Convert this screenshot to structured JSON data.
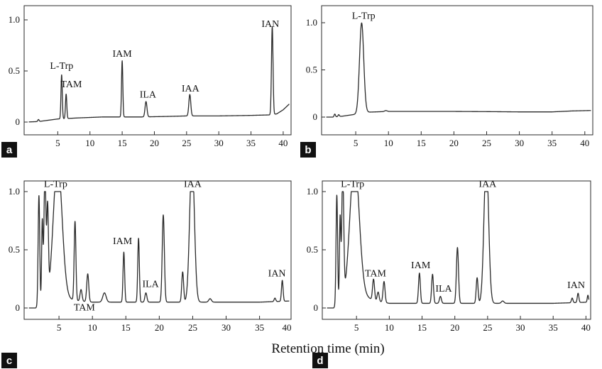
{
  "figure": {
    "x_axis_title": "Retention time (min)"
  },
  "colors": {
    "trace": "#2a2a2a",
    "badge_bg": "#111111",
    "badge_text": "#ffffff"
  },
  "chart_data": [
    {
      "panel": "a",
      "type": "line",
      "x_range": [
        0,
        41
      ],
      "y_range": [
        0,
        1.1
      ],
      "x_ticks": [
        5,
        10,
        15,
        20,
        25,
        30,
        35,
        40
      ],
      "y_ticks": [
        0,
        0.5,
        1.0
      ],
      "y_tick_labels": [
        "0",
        "0.5",
        "1.0"
      ],
      "baseline": {
        "x": [
          0,
          2,
          5,
          8,
          12,
          15,
          18,
          22,
          25,
          30,
          35,
          38,
          39,
          40,
          41
        ],
        "y": [
          0,
          0.005,
          0.03,
          0.04,
          0.05,
          0.05,
          0.05,
          0.055,
          0.06,
          0.06,
          0.065,
          0.07,
          0.08,
          0.12,
          0.18
        ]
      },
      "peaks": [
        {
          "x": 2.0,
          "h": 0.02,
          "w": 0.1,
          "label": ""
        },
        {
          "x": 5.6,
          "h": 0.43,
          "w": 0.1,
          "label": "L-Trp"
        },
        {
          "x": 6.3,
          "h": 0.24,
          "w": 0.1,
          "label": "TAM"
        },
        {
          "x": 15.0,
          "h": 0.55,
          "w": 0.1,
          "label": "IAM"
        },
        {
          "x": 18.7,
          "h": 0.15,
          "w": 0.15,
          "label": "ILA"
        },
        {
          "x": 25.5,
          "h": 0.21,
          "w": 0.15,
          "label": "IAA"
        },
        {
          "x": 38.3,
          "h": 0.86,
          "w": 0.12,
          "label": "IAN"
        }
      ],
      "labels": [
        {
          "text": "L-Trp",
          "x": 5.6,
          "y": 0.52
        },
        {
          "text": "TAM",
          "x": 7.1,
          "y": 0.34
        },
        {
          "text": "IAM",
          "x": 15.0,
          "y": 0.64
        },
        {
          "text": "ILA",
          "x": 19.0,
          "y": 0.24
        },
        {
          "text": "IAA",
          "x": 25.6,
          "y": 0.3
        },
        {
          "text": "IAN",
          "x": 38.0,
          "y": 0.93
        }
      ]
    },
    {
      "panel": "b",
      "type": "line",
      "x_range": [
        0,
        41
      ],
      "y_range": [
        -0.1,
        1.1
      ],
      "x_ticks": [
        5,
        10,
        15,
        20,
        25,
        30,
        35,
        40
      ],
      "y_ticks": [
        0,
        0.5,
        1.0
      ],
      "y_tick_labels": [
        "0",
        "0.5",
        "1.0"
      ],
      "baseline": {
        "x": [
          0,
          1.5,
          3,
          5,
          6,
          8,
          10,
          15,
          20,
          25,
          30,
          35,
          38,
          41
        ],
        "y": [
          0,
          0.0,
          0.01,
          0.03,
          0.05,
          0.055,
          0.06,
          0.06,
          0.06,
          0.058,
          0.055,
          0.055,
          0.065,
          0.07
        ]
      },
      "peaks": [
        {
          "x": 1.8,
          "h": 0.03,
          "w": 0.1,
          "label": ""
        },
        {
          "x": 2.4,
          "h": 0.02,
          "w": 0.1,
          "label": ""
        },
        {
          "x": 5.9,
          "h": 0.95,
          "w": 0.32,
          "label": "L-Trp"
        },
        {
          "x": 9.6,
          "h": 0.01,
          "w": 0.2,
          "label": ""
        }
      ],
      "clip_top": 1.0,
      "labels": [
        {
          "text": "L-Trp",
          "x": 6.2,
          "y": 1.04
        }
      ]
    },
    {
      "panel": "c",
      "type": "line",
      "x_range": [
        0,
        39.5
      ],
      "y_range": [
        -0.1,
        1.1
      ],
      "x_ticks": [
        5,
        10,
        15,
        20,
        25,
        30,
        35
      ],
      "x_tick_labels_shown": [
        "5",
        "10",
        "15",
        "20",
        "25",
        "30",
        "35",
        "40"
      ],
      "y_ticks": [
        0,
        0.5,
        1.0
      ],
      "y_tick_labels": [
        "0",
        "0.5",
        "1.0"
      ],
      "baseline": {
        "x": [
          0,
          1.5,
          3,
          6,
          8,
          10,
          12,
          15,
          20,
          25,
          30,
          35,
          39.5
        ],
        "y": [
          0,
          0.0,
          0.05,
          0.08,
          0.06,
          0.05,
          0.05,
          0.05,
          0.05,
          0.05,
          0.05,
          0.05,
          0.06
        ]
      },
      "peaks": [
        {
          "x": 2.0,
          "h": 0.95,
          "w": 0.12,
          "label": ""
        },
        {
          "x": 2.5,
          "h": 0.7,
          "w": 0.1,
          "label": ""
        },
        {
          "x": 2.9,
          "h": 1.1,
          "w": 0.15,
          "label": ""
        },
        {
          "x": 3.3,
          "h": 0.75,
          "w": 0.12,
          "label": ""
        },
        {
          "x": 4.8,
          "h": 1.2,
          "w": 0.65,
          "label": "L-Trp"
        },
        {
          "x": 7.4,
          "h": 0.68,
          "w": 0.13,
          "label": ""
        },
        {
          "x": 8.3,
          "h": 0.1,
          "w": 0.15,
          "label": "TAM"
        },
        {
          "x": 9.3,
          "h": 0.24,
          "w": 0.15,
          "label": ""
        },
        {
          "x": 11.8,
          "h": 0.08,
          "w": 0.25,
          "label": ""
        },
        {
          "x": 14.7,
          "h": 0.43,
          "w": 0.12,
          "label": "IAM"
        },
        {
          "x": 16.9,
          "h": 0.55,
          "w": 0.12,
          "label": ""
        },
        {
          "x": 18.0,
          "h": 0.08,
          "w": 0.15,
          "label": "ILA"
        },
        {
          "x": 20.6,
          "h": 0.75,
          "w": 0.16,
          "label": ""
        },
        {
          "x": 23.5,
          "h": 0.26,
          "w": 0.14,
          "label": ""
        },
        {
          "x": 24.9,
          "h": 1.25,
          "w": 0.35,
          "label": "IAA"
        },
        {
          "x": 27.6,
          "h": 0.03,
          "w": 0.2,
          "label": ""
        },
        {
          "x": 37.3,
          "h": 0.03,
          "w": 0.12,
          "label": ""
        },
        {
          "x": 38.4,
          "h": 0.18,
          "w": 0.12,
          "label": "IAN"
        }
      ],
      "clip_top": 1.0,
      "labels": [
        {
          "text": "L-Trp",
          "x": 4.5,
          "y": 1.04
        },
        {
          "text": "TAM",
          "x": 8.8,
          "y": -0.02
        },
        {
          "text": "IAM",
          "x": 14.5,
          "y": 0.55
        },
        {
          "text": "ILA",
          "x": 18.7,
          "y": 0.18
        },
        {
          "text": "IAA",
          "x": 25.0,
          "y": 1.04
        },
        {
          "text": "IAN",
          "x": 37.6,
          "y": 0.27
        }
      ]
    },
    {
      "panel": "d",
      "type": "line",
      "x_range": [
        0,
        40.5
      ],
      "y_range": [
        -0.1,
        1.1
      ],
      "x_ticks": [
        5,
        10,
        15,
        20,
        25,
        30,
        35,
        40
      ],
      "y_ticks": [
        0,
        0.5,
        1.0
      ],
      "y_tick_labels": [
        "0",
        "0.5",
        "1.0"
      ],
      "baseline": {
        "x": [
          0,
          1.5,
          3,
          6,
          8,
          10,
          15,
          20,
          25,
          30,
          35,
          40.5
        ],
        "y": [
          0,
          0.0,
          0.06,
          0.1,
          0.06,
          0.04,
          0.04,
          0.04,
          0.04,
          0.04,
          0.04,
          0.05
        ]
      },
      "peaks": [
        {
          "x": 2.0,
          "h": 0.95,
          "w": 0.12,
          "label": ""
        },
        {
          "x": 2.5,
          "h": 0.72,
          "w": 0.1,
          "label": ""
        },
        {
          "x": 2.9,
          "h": 1.1,
          "w": 0.15,
          "label": ""
        },
        {
          "x": 4.7,
          "h": 1.2,
          "w": 0.7,
          "label": "L-Trp"
        },
        {
          "x": 7.6,
          "h": 0.18,
          "w": 0.15,
          "label": "TAM"
        },
        {
          "x": 8.3,
          "h": 0.08,
          "w": 0.15,
          "label": ""
        },
        {
          "x": 9.2,
          "h": 0.18,
          "w": 0.15,
          "label": ""
        },
        {
          "x": 14.6,
          "h": 0.26,
          "w": 0.14,
          "label": "IAM"
        },
        {
          "x": 16.6,
          "h": 0.25,
          "w": 0.14,
          "label": ""
        },
        {
          "x": 17.8,
          "h": 0.06,
          "w": 0.15,
          "label": "ILA"
        },
        {
          "x": 20.4,
          "h": 0.48,
          "w": 0.16,
          "label": ""
        },
        {
          "x": 23.4,
          "h": 0.22,
          "w": 0.14,
          "label": ""
        },
        {
          "x": 24.8,
          "h": 1.25,
          "w": 0.35,
          "label": "IAA"
        },
        {
          "x": 27.3,
          "h": 0.02,
          "w": 0.2,
          "label": ""
        },
        {
          "x": 37.9,
          "h": 0.04,
          "w": 0.12,
          "label": ""
        },
        {
          "x": 38.8,
          "h": 0.08,
          "w": 0.12,
          "label": "IAN"
        },
        {
          "x": 40.3,
          "h": 0.06,
          "w": 0.1,
          "label": ""
        }
      ],
      "clip_top": 1.0,
      "labels": [
        {
          "text": "L-Trp",
          "x": 4.4,
          "y": 1.04
        },
        {
          "text": "TAM",
          "x": 7.9,
          "y": 0.27
        },
        {
          "text": "IAM",
          "x": 14.8,
          "y": 0.34
        },
        {
          "text": "ILA",
          "x": 18.3,
          "y": 0.14
        },
        {
          "text": "IAA",
          "x": 25.0,
          "y": 1.04
        },
        {
          "text": "IAN",
          "x": 38.5,
          "y": 0.17
        }
      ]
    }
  ]
}
